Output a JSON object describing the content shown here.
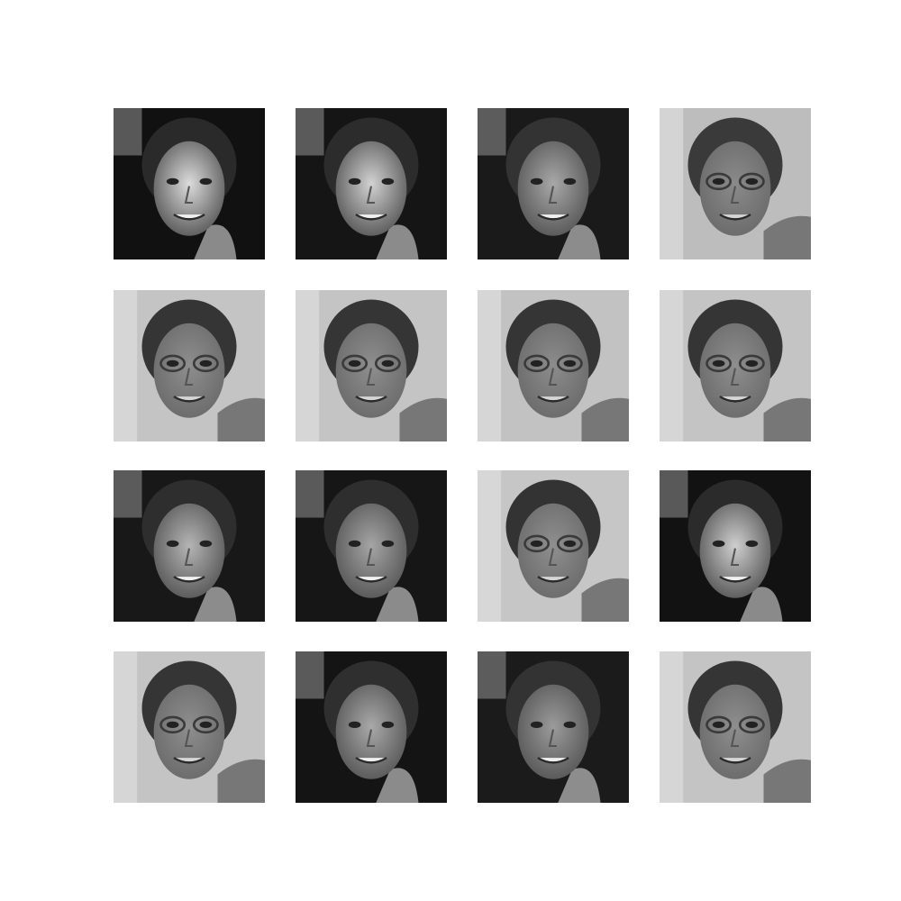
{
  "figure": {
    "background": "#ffffff",
    "grid_rows": 4,
    "grid_cols": 4
  },
  "tiles": [
    {
      "variant": "dark",
      "bg": "#111111",
      "skin": "#dcdcdc",
      "hair": "#2a2a2a",
      "glasses": false
    },
    {
      "variant": "dark",
      "bg": "#151515",
      "skin": "#d2d2d2",
      "hair": "#2c2c2c",
      "glasses": false
    },
    {
      "variant": "dark",
      "bg": "#1a1a1a",
      "skin": "#a8a8a8",
      "hair": "#333333",
      "glasses": false
    },
    {
      "variant": "light",
      "bg": "#bdbdbd",
      "skin": "#8a8a8a",
      "hair": "#3a3a3a",
      "glasses": true
    },
    {
      "variant": "light",
      "bg": "#c4c4c4",
      "skin": "#8e8e8e",
      "hair": "#353535",
      "glasses": true
    },
    {
      "variant": "light",
      "bg": "#c4c4c4",
      "skin": "#8e8e8e",
      "hair": "#353535",
      "glasses": true
    },
    {
      "variant": "light",
      "bg": "#c2c2c2",
      "skin": "#8c8c8c",
      "hair": "#353535",
      "glasses": true
    },
    {
      "variant": "light",
      "bg": "#c4c4c4",
      "skin": "#8e8e8e",
      "hair": "#353535",
      "glasses": true
    },
    {
      "variant": "dark",
      "bg": "#181818",
      "skin": "#b5b5b5",
      "hair": "#2e2e2e",
      "glasses": false
    },
    {
      "variant": "dark",
      "bg": "#161616",
      "skin": "#a5a5a5",
      "hair": "#2e2e2e",
      "glasses": false
    },
    {
      "variant": "light",
      "bg": "#c6c6c6",
      "skin": "#8f8f8f",
      "hair": "#333333",
      "glasses": true
    },
    {
      "variant": "dark",
      "bg": "#121212",
      "skin": "#cfcfcf",
      "hair": "#2b2b2b",
      "glasses": false
    },
    {
      "variant": "light",
      "bg": "#c4c4c4",
      "skin": "#8e8e8e",
      "hair": "#353535",
      "glasses": true
    },
    {
      "variant": "dark",
      "bg": "#141414",
      "skin": "#a9a9a9",
      "hair": "#2f2f2f",
      "glasses": false
    },
    {
      "variant": "dark",
      "bg": "#1b1b1b",
      "skin": "#9b9b9b",
      "hair": "#333333",
      "glasses": false
    },
    {
      "variant": "light",
      "bg": "#c4c4c4",
      "skin": "#8e8e8e",
      "hair": "#353535",
      "glasses": true
    }
  ]
}
